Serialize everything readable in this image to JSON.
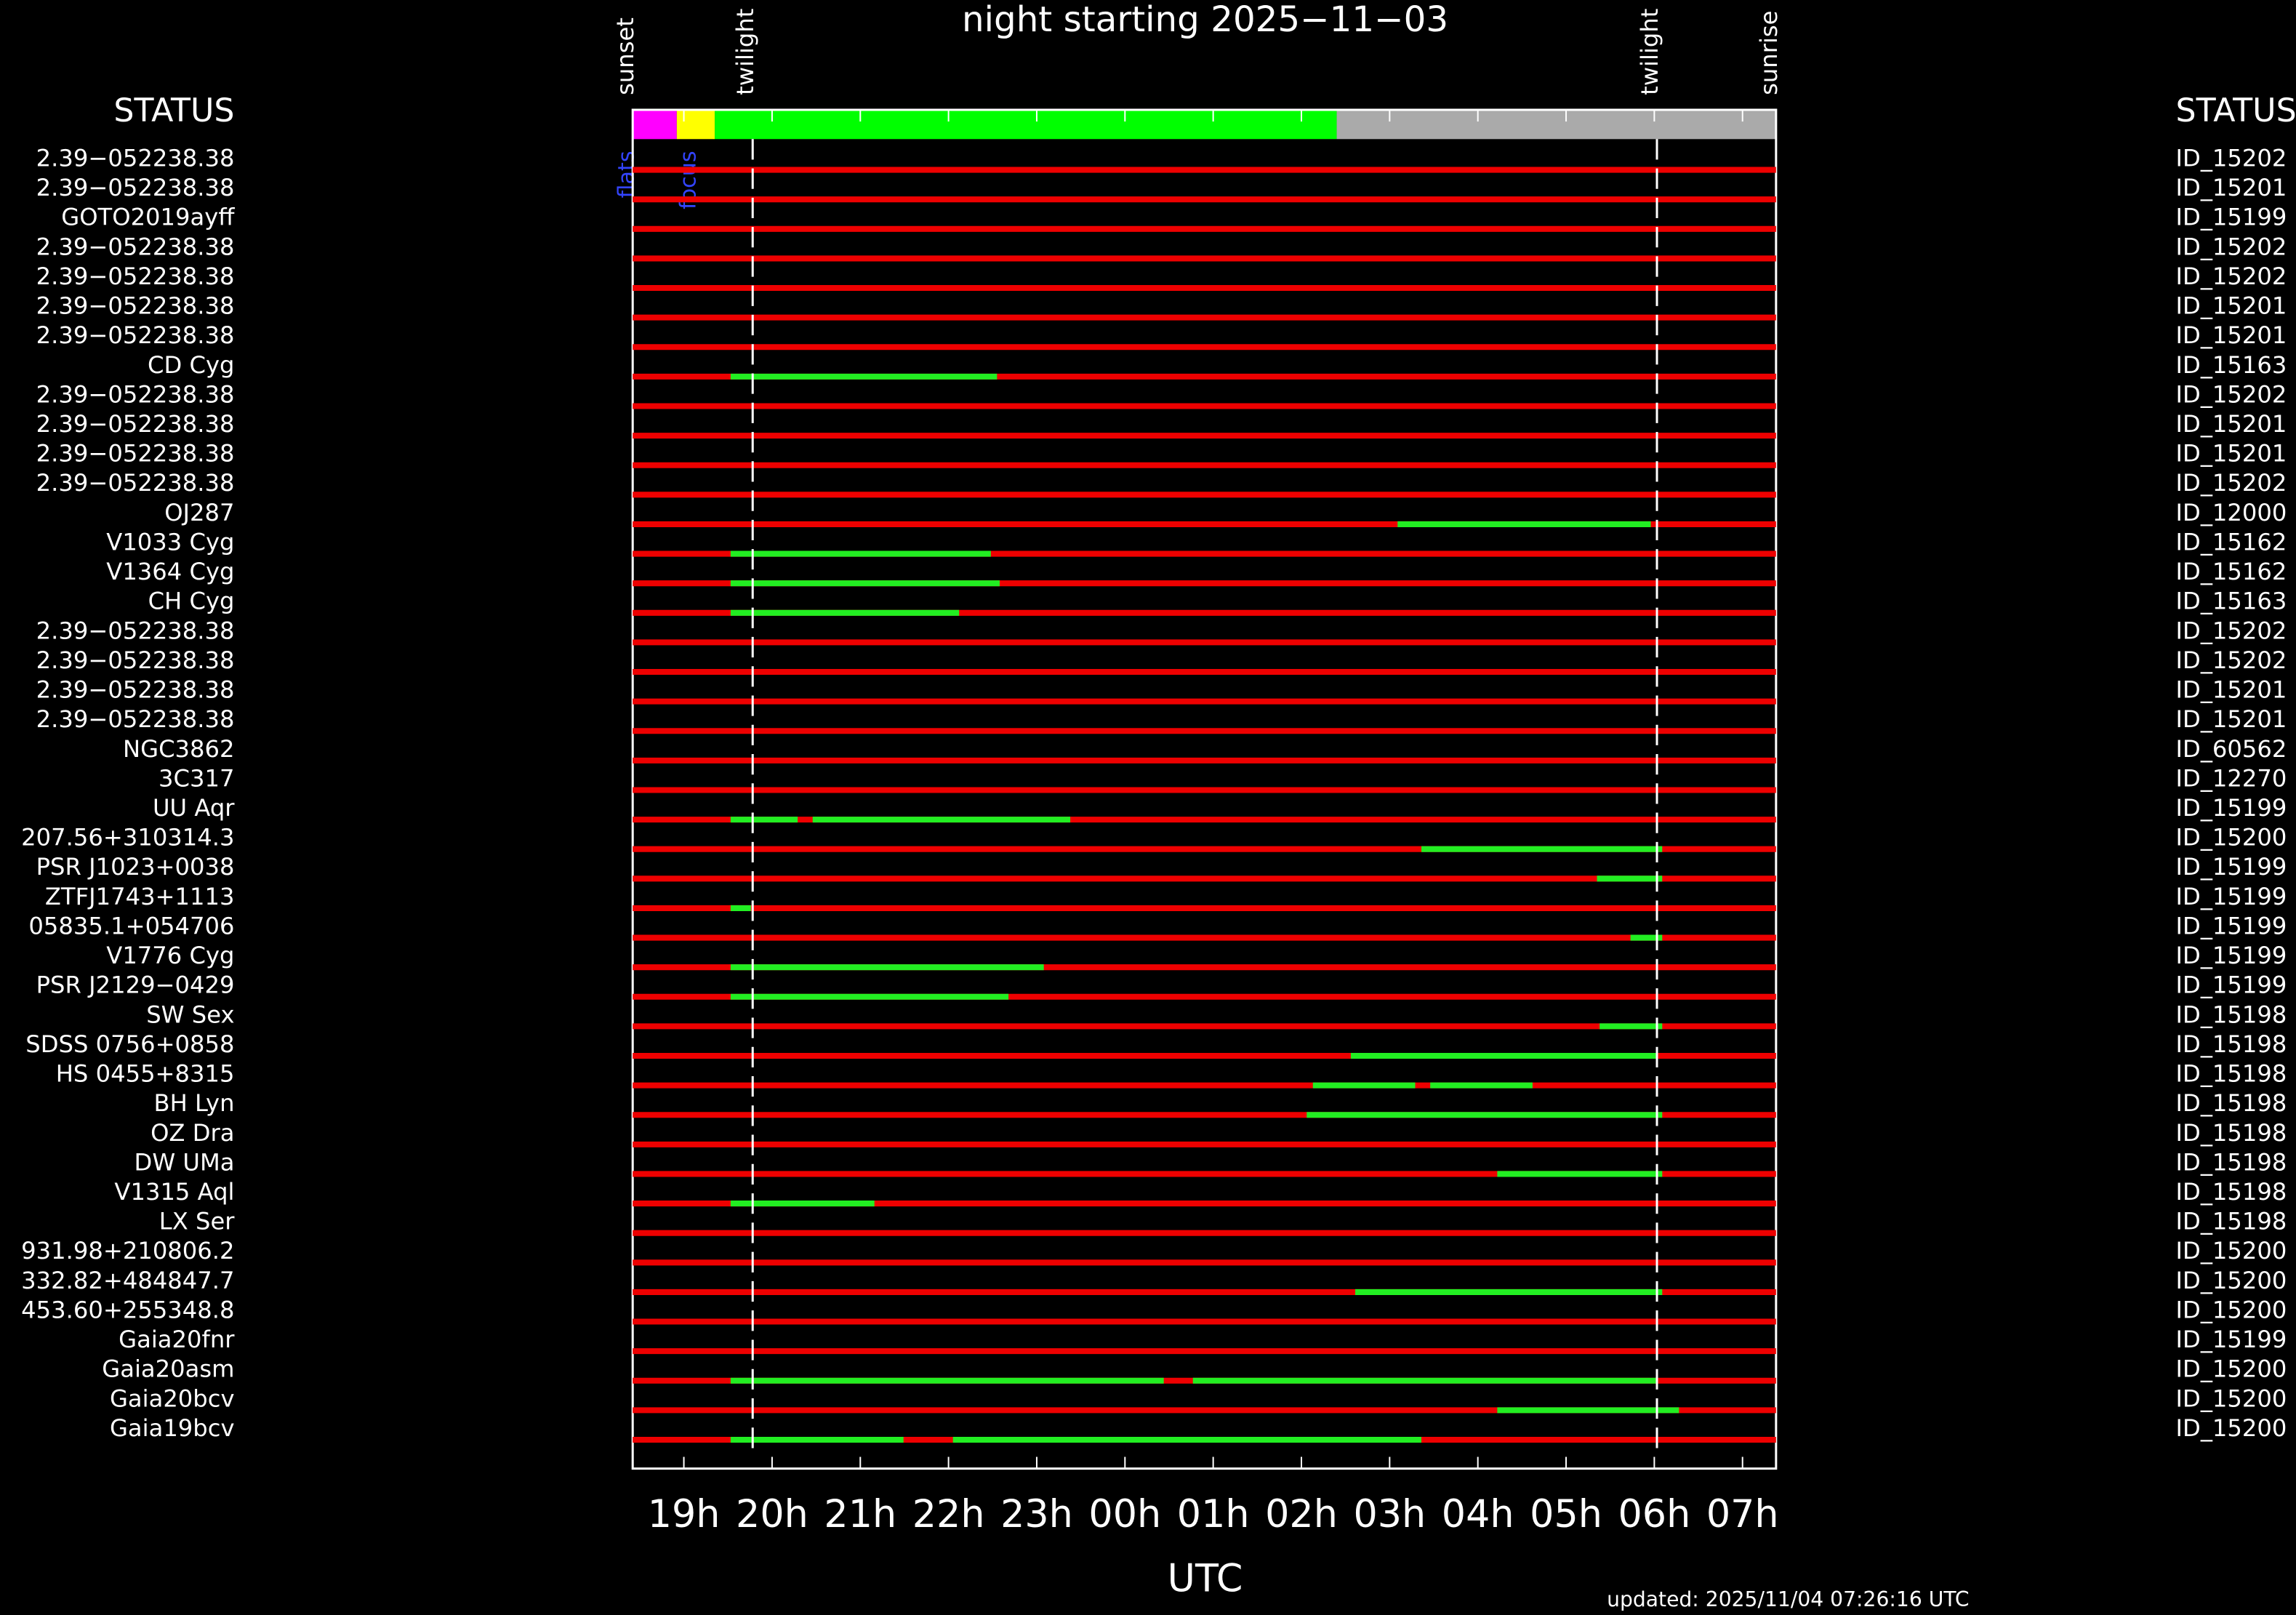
{
  "chart_data": {
    "type": "timeline",
    "title": "night starting 2025−11−03",
    "xlabel": "UTC",
    "status_header": "STATUS",
    "updated": "updated: 2025/11/04 07:26:16 UTC",
    "xlim": [
      18.42,
      31.38
    ],
    "xticks": [
      {
        "value": 19,
        "label": "19h"
      },
      {
        "value": 20,
        "label": "20h"
      },
      {
        "value": 21,
        "label": "21h"
      },
      {
        "value": 22,
        "label": "22h"
      },
      {
        "value": 23,
        "label": "23h"
      },
      {
        "value": 24,
        "label": "00h"
      },
      {
        "value": 25,
        "label": "01h"
      },
      {
        "value": 26,
        "label": "02h"
      },
      {
        "value": 27,
        "label": "03h"
      },
      {
        "value": 28,
        "label": "04h"
      },
      {
        "value": 29,
        "label": "05h"
      },
      {
        "value": 30,
        "label": "06h"
      },
      {
        "value": 31,
        "label": "07h"
      }
    ],
    "events": [
      {
        "label": "sunset",
        "value": 18.42,
        "dashed": false
      },
      {
        "label": "twilight",
        "value": 19.78,
        "dashed": true
      },
      {
        "label": "twilight",
        "value": 30.03,
        "dashed": true
      },
      {
        "label": "sunrise",
        "value": 31.38,
        "dashed": false
      }
    ],
    "status_bar": [
      {
        "color": "#ff00ff",
        "range": [
          18.42,
          18.92
        ]
      },
      {
        "color": "#ffff00",
        "range": [
          18.92,
          19.35
        ]
      },
      {
        "color": "#00ff00",
        "range": [
          19.35,
          26.4
        ]
      },
      {
        "color": "#aaaaaa",
        "range": [
          26.4,
          31.38
        ]
      }
    ],
    "status_labels": [
      {
        "label": "flats",
        "value": 18.36
      },
      {
        "label": "focus",
        "value": 19.06
      }
    ],
    "line_color": "#ee0000",
    "segment_color": "#22ee22",
    "rows": [
      {
        "name": "2.39−052238.38",
        "id": "ID_15202",
        "segments": []
      },
      {
        "name": "2.39−052238.38",
        "id": "ID_15201",
        "segments": []
      },
      {
        "name": "GOTO2019ayff",
        "id": "ID_15199",
        "segments": []
      },
      {
        "name": "2.39−052238.38",
        "id": "ID_15202",
        "segments": []
      },
      {
        "name": "2.39−052238.38",
        "id": "ID_15202",
        "segments": []
      },
      {
        "name": "2.39−052238.38",
        "id": "ID_15201",
        "segments": []
      },
      {
        "name": "2.39−052238.38",
        "id": "ID_15201",
        "segments": []
      },
      {
        "name": "CD Cyg",
        "id": "ID_15163",
        "segments": [
          [
            19.53,
            22.55
          ]
        ]
      },
      {
        "name": "2.39−052238.38",
        "id": "ID_15202",
        "segments": []
      },
      {
        "name": "2.39−052238.38",
        "id": "ID_15201",
        "segments": []
      },
      {
        "name": "2.39−052238.38",
        "id": "ID_15201",
        "segments": []
      },
      {
        "name": "2.39−052238.38",
        "id": "ID_15202",
        "segments": []
      },
      {
        "name": "OJ287",
        "id": "ID_12000",
        "segments": [
          [
            27.09,
            29.96
          ]
        ]
      },
      {
        "name": "V1033 Cyg",
        "id": "ID_15162",
        "segments": [
          [
            19.53,
            22.48
          ]
        ]
      },
      {
        "name": "V1364 Cyg",
        "id": "ID_15162",
        "segments": [
          [
            19.53,
            22.58
          ]
        ]
      },
      {
        "name": "CH Cyg",
        "id": "ID_15163",
        "segments": [
          [
            19.53,
            22.12
          ]
        ]
      },
      {
        "name": "2.39−052238.38",
        "id": "ID_15202",
        "segments": []
      },
      {
        "name": "2.39−052238.38",
        "id": "ID_15202",
        "segments": []
      },
      {
        "name": "2.39−052238.38",
        "id": "ID_15201",
        "segments": []
      },
      {
        "name": "2.39−052238.38",
        "id": "ID_15201",
        "segments": []
      },
      {
        "name": "NGC3862",
        "id": "ID_60562",
        "segments": []
      },
      {
        "name": "3C317",
        "id": "ID_12270",
        "segments": []
      },
      {
        "name": "UU Aqr",
        "id": "ID_15199",
        "segments": [
          [
            19.53,
            20.29
          ],
          [
            20.46,
            23.38
          ]
        ]
      },
      {
        "name": "207.56+310314.3",
        "id": "ID_15200",
        "segments": [
          [
            27.36,
            30.09
          ]
        ]
      },
      {
        "name": "PSR J1023+0038",
        "id": "ID_15199",
        "segments": [
          [
            29.35,
            30.09
          ]
        ]
      },
      {
        "name": "ZTFJ1743+1113",
        "id": "ID_15199",
        "segments": [
          [
            19.53,
            19.76
          ]
        ]
      },
      {
        "name": "05835.1+054706",
        "id": "ID_15199",
        "segments": [
          [
            29.73,
            30.09
          ]
        ]
      },
      {
        "name": "V1776 Cyg",
        "id": "ID_15199",
        "segments": [
          [
            19.53,
            23.08
          ]
        ]
      },
      {
        "name": "PSR J2129−0429",
        "id": "ID_15199",
        "segments": [
          [
            19.53,
            22.68
          ]
        ]
      },
      {
        "name": "SW Sex",
        "id": "ID_15198",
        "segments": [
          [
            29.38,
            30.09
          ]
        ]
      },
      {
        "name": "SDSS 0756+0858",
        "id": "ID_15198",
        "segments": [
          [
            26.56,
            30.04
          ]
        ]
      },
      {
        "name": "HS 0455+8315",
        "id": "ID_15198",
        "segments": [
          [
            26.13,
            27.29
          ],
          [
            27.46,
            28.62
          ]
        ]
      },
      {
        "name": "BH Lyn",
        "id": "ID_15198",
        "segments": [
          [
            26.06,
            30.09
          ]
        ]
      },
      {
        "name": "OZ Dra",
        "id": "ID_15198",
        "segments": []
      },
      {
        "name": "DW UMa",
        "id": "ID_15198",
        "segments": [
          [
            28.22,
            30.09
          ]
        ]
      },
      {
        "name": "V1315 Aql",
        "id": "ID_15198",
        "segments": [
          [
            19.53,
            21.16
          ]
        ]
      },
      {
        "name": "LX Ser",
        "id": "ID_15198",
        "segments": []
      },
      {
        "name": "931.98+210806.2",
        "id": "ID_15200",
        "segments": []
      },
      {
        "name": "332.82+484847.7",
        "id": "ID_15200",
        "segments": [
          [
            26.61,
            30.09
          ]
        ]
      },
      {
        "name": "453.60+255348.8",
        "id": "ID_15200",
        "segments": []
      },
      {
        "name": "Gaia20fnr",
        "id": "ID_15199",
        "segments": []
      },
      {
        "name": "Gaia20asm",
        "id": "ID_15200",
        "segments": [
          [
            19.53,
            24.44
          ],
          [
            24.77,
            30.03
          ]
        ]
      },
      {
        "name": "Gaia20bcv",
        "id": "ID_15200",
        "segments": [
          [
            28.22,
            30.28
          ]
        ]
      },
      {
        "name": "Gaia19bcv",
        "id": "ID_15200",
        "segments": [
          [
            19.53,
            21.49
          ],
          [
            22.05,
            27.36
          ]
        ]
      }
    ]
  }
}
